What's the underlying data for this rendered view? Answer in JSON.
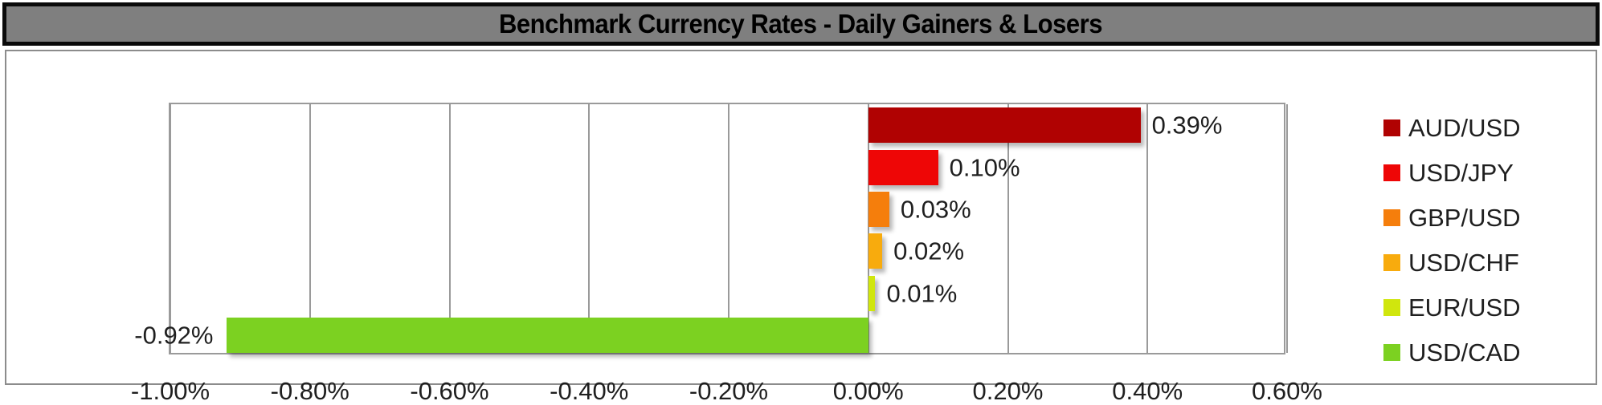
{
  "title": "Benchmark Currency Rates - Daily Gainers & Losers",
  "colors": {
    "banner_bg": "#7F7F7F",
    "banner_border": "#0A0A0A",
    "banner_text": "#000000",
    "chart_border": "#8C8C8C",
    "gridline": "#9A9A9A",
    "text": "#1F1F1F",
    "background": "#FFFFFF"
  },
  "chart_data": {
    "type": "bar",
    "orientation": "horizontal",
    "title": "Benchmark Currency Rates - Daily Gainers & Losers",
    "categories": [
      "AUD/USD",
      "USD/JPY",
      "GBP/USD",
      "USD/CHF",
      "EUR/USD",
      "USD/CAD"
    ],
    "values": [
      0.39,
      0.1,
      0.03,
      0.02,
      0.01,
      -0.92
    ],
    "data_labels": [
      "0.39%",
      "0.10%",
      "0.03%",
      "0.02%",
      "0.01%",
      "-0.92%"
    ],
    "bar_colors": [
      "#B00202",
      "#EE0606",
      "#F57E0C",
      "#F8AB0D",
      "#D0E60D",
      "#7CD121"
    ],
    "xlabel": "",
    "ylabel": "",
    "x_axis": {
      "min": -1.0,
      "max": 0.6,
      "tick_step": 0.2,
      "tick_labels": [
        "-1.00%",
        "-0.80%",
        "-0.60%",
        "-0.40%",
        "-0.20%",
        "0.00%",
        "0.20%",
        "0.40%",
        "0.60%"
      ]
    },
    "legend": {
      "position": "right",
      "entries": [
        "AUD/USD",
        "USD/JPY",
        "GBP/USD",
        "USD/CHF",
        "EUR/USD",
        "USD/CAD"
      ]
    },
    "grid": true
  }
}
